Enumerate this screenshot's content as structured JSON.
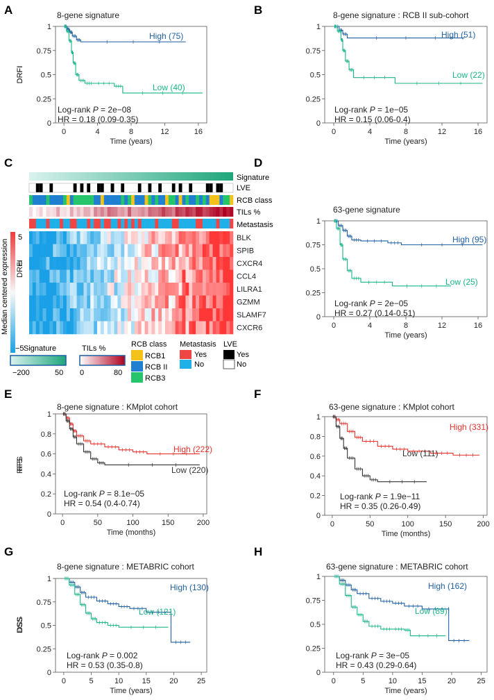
{
  "colors": {
    "teal": "#19b589",
    "blue": "#1f5f9f",
    "red": "#e5322d",
    "black": "#333333",
    "rcb1": "#f5c21b",
    "rcb2": "#1f7fd0",
    "rcb3": "#26c46b",
    "met_yes": "#f04545",
    "met_no": "#1fb0e8"
  },
  "panels": {
    "A": {
      "label": "A"
    },
    "B": {
      "label": "B"
    },
    "C": {
      "label": "C"
    },
    "D": {
      "label": "D"
    },
    "E": {
      "label": "E"
    },
    "F": {
      "label": "F"
    },
    "G": {
      "label": "G"
    },
    "H": {
      "label": "H"
    }
  },
  "heatmap": {
    "annotation_rows": [
      "Signature",
      "LVE",
      "RCB class",
      "TILs %",
      "Metastasis"
    ],
    "genes": [
      "BLK",
      "SPIB",
      "CXCR4",
      "CCL4",
      "LILRA1",
      "GZMM",
      "SLAMF7",
      "CXCR6"
    ],
    "scale_title": "Median centered expression",
    "scale_ticks": [
      "5",
      "0",
      "−5"
    ],
    "legends": {
      "signature": {
        "title": "Signature",
        "min": "−200",
        "max": "50"
      },
      "tils": {
        "title": "TILs %",
        "min": "0",
        "max": "80"
      },
      "rcb": {
        "title": "RCB class",
        "items": [
          "RCB1",
          "RCB II",
          "RCB3"
        ]
      },
      "metastasis": {
        "title": "Metastasis",
        "items": [
          "Yes",
          "No"
        ]
      },
      "lve": {
        "title": "LVE",
        "items": [
          "Yes",
          "No"
        ]
      }
    }
  },
  "chart_data": [
    {
      "panel": "A",
      "type": "line",
      "title": "8-gene signature",
      "xlabel": "Time (years)",
      "ylabel": "DRFI",
      "xlim": [
        -1,
        17
      ],
      "ylim": [
        0,
        1
      ],
      "xticks": [
        "0",
        "4",
        "8",
        "12",
        "16"
      ],
      "yticks": [
        "0",
        "0.25",
        "0.5",
        "0.75",
        "1"
      ],
      "series": [
        {
          "name": "High (75)",
          "color": "#1f5f9f",
          "x": [
            0,
            0.4,
            0.7,
            1.0,
            1.5,
            2.0,
            14.5
          ],
          "y": [
            1,
            0.97,
            0.94,
            0.9,
            0.86,
            0.84,
            0.84
          ]
        },
        {
          "name": "Low (40)",
          "color": "#19b589",
          "x": [
            0,
            0.3,
            0.6,
            0.9,
            1.1,
            1.4,
            1.8,
            2.5,
            3.5,
            6.0,
            7.0,
            16.5
          ],
          "y": [
            1,
            0.95,
            0.85,
            0.73,
            0.62,
            0.5,
            0.44,
            0.41,
            0.41,
            0.38,
            0.31,
            0.31
          ]
        }
      ],
      "stats": {
        "logrank_prefix": "Log-rank ",
        "P": "P",
        "logrank_value": " = 2e−08",
        "hr": "HR = 0.18 (0.09-0.35)"
      }
    },
    {
      "panel": "B",
      "type": "line",
      "title": "8-gene signature : RCB II sub-cohort",
      "xlabel": "Time (years)",
      "ylabel": "DRFI",
      "xlim": [
        -1,
        17
      ],
      "ylim": [
        0,
        1
      ],
      "xticks": [
        "0",
        "4",
        "8",
        "12",
        "16"
      ],
      "yticks": [
        "0",
        "0.25",
        "0.5",
        "0.75",
        "1"
      ],
      "series": [
        {
          "name": "High (51)",
          "color": "#1f5f9f",
          "x": [
            0,
            0.6,
            1.0,
            1.5,
            14.5
          ],
          "y": [
            1,
            0.96,
            0.92,
            0.88,
            0.88
          ]
        },
        {
          "name": "Low (22)",
          "color": "#19b589",
          "x": [
            0,
            0.4,
            0.8,
            1.0,
            1.3,
            1.7,
            2.2,
            6.8,
            16.5
          ],
          "y": [
            1,
            0.95,
            0.86,
            0.75,
            0.64,
            0.55,
            0.47,
            0.41,
            0.41
          ]
        }
      ],
      "stats": {
        "logrank_prefix": "Log-rank ",
        "P": "P",
        "logrank_value": " = 1e−05",
        "hr": "HR = 0.15 (0.06-0.4)"
      }
    },
    {
      "panel": "D",
      "type": "line",
      "title": "63-gene signature",
      "xlabel": "Time (years)",
      "ylabel": "DRFI",
      "xlim": [
        -1,
        17
      ],
      "ylim": [
        0,
        1
      ],
      "xticks": [
        "0",
        "4",
        "8",
        "12",
        "16"
      ],
      "yticks": [
        "0",
        "0.25",
        "0.5",
        "0.75",
        "1"
      ],
      "series": [
        {
          "name": "High (95)",
          "color": "#1f5f9f",
          "x": [
            0,
            0.5,
            1.0,
            1.5,
            2.0,
            3.0,
            6.0,
            7.5,
            16.5
          ],
          "y": [
            1,
            0.95,
            0.9,
            0.84,
            0.8,
            0.79,
            0.77,
            0.75,
            0.75
          ]
        },
        {
          "name": "Low (25)",
          "color": "#19b589",
          "x": [
            0,
            0.3,
            0.7,
            1.0,
            1.5,
            2.0,
            3.0,
            6.5,
            13.0
          ],
          "y": [
            1,
            0.92,
            0.75,
            0.6,
            0.48,
            0.4,
            0.36,
            0.32,
            0.32
          ]
        }
      ],
      "stats": {
        "logrank_prefix": "Log-rank ",
        "P": "P",
        "logrank_value": " = 2e−05",
        "hr": "HR = 0.27 (0.14-0.51)"
      }
    },
    {
      "panel": "E",
      "type": "line",
      "title": "8-gene signature : KMplot cohort",
      "xlabel": "Time (months)",
      "ylabel": "RFS",
      "xlim": [
        -10,
        205
      ],
      "ylim": [
        0,
        1
      ],
      "xticks": [
        "0",
        "50",
        "100",
        "150",
        "200"
      ],
      "yticks": [
        "0",
        "0.2",
        "0.4",
        "0.6",
        "0.8",
        "1"
      ],
      "series": [
        {
          "name": "High (222)",
          "color": "#e5322d",
          "x": [
            0,
            5,
            10,
            15,
            20,
            30,
            40,
            60,
            80,
            100,
            120,
            195
          ],
          "y": [
            1,
            0.96,
            0.9,
            0.83,
            0.78,
            0.73,
            0.7,
            0.67,
            0.64,
            0.62,
            0.6,
            0.6
          ]
        },
        {
          "name": "Low (220)",
          "color": "#333333",
          "x": [
            0,
            5,
            10,
            15,
            20,
            30,
            40,
            50,
            60,
            195
          ],
          "y": [
            1,
            0.93,
            0.85,
            0.77,
            0.7,
            0.62,
            0.55,
            0.51,
            0.49,
            0.49
          ]
        }
      ],
      "stats": {
        "logrank_prefix": "Log-rank ",
        "P": "P",
        "logrank_value": " = 8.1e−05",
        "hr": "HR = 0.54 (0.4-0.74)"
      }
    },
    {
      "panel": "F",
      "type": "line",
      "title": "63-gene signature : KMplot cohort",
      "xlabel": "Time (months)",
      "ylabel": "RFS",
      "xlim": [
        -10,
        205
      ],
      "ylim": [
        0,
        1
      ],
      "xticks": [
        "0",
        "50",
        "100",
        "150",
        "200"
      ],
      "yticks": [
        "0",
        "0.2",
        "0.4",
        "0.6",
        "0.8",
        "1"
      ],
      "series": [
        {
          "name": "High (331)",
          "color": "#e5322d",
          "x": [
            0,
            5,
            10,
            20,
            30,
            40,
            60,
            80,
            100,
            130,
            160,
            195
          ],
          "y": [
            1,
            0.97,
            0.93,
            0.85,
            0.79,
            0.75,
            0.7,
            0.67,
            0.65,
            0.63,
            0.61,
            0.61
          ]
        },
        {
          "name": "Low (111)",
          "color": "#333333",
          "x": [
            0,
            5,
            10,
            15,
            20,
            30,
            40,
            50,
            60,
            125
          ],
          "y": [
            1,
            0.9,
            0.78,
            0.68,
            0.58,
            0.47,
            0.4,
            0.36,
            0.34,
            0.34
          ]
        }
      ],
      "stats": {
        "logrank_prefix": "Log-rank ",
        "P": "P",
        "logrank_value": " = 1.9e−11",
        "hr": "HR = 0.35 (0.26-0.49)"
      }
    },
    {
      "panel": "G",
      "type": "line",
      "title": "8-gene signature : METABRIC cohort",
      "xlabel": "Time (years)",
      "ylabel": "DSS",
      "xlim": [
        -1.5,
        26
      ],
      "ylim": [
        0,
        1
      ],
      "xticks": [
        "0",
        "5",
        "10",
        "15",
        "20",
        "25"
      ],
      "yticks": [
        "0",
        "0.25",
        "0.5",
        "0.75",
        "1"
      ],
      "series": [
        {
          "name": "High (130)",
          "color": "#1f5f9f",
          "x": [
            0,
            1,
            2,
            3,
            4,
            6,
            8,
            10,
            12,
            15,
            19.5,
            19.5,
            23
          ],
          "y": [
            1,
            0.96,
            0.91,
            0.85,
            0.8,
            0.76,
            0.73,
            0.7,
            0.68,
            0.64,
            0.64,
            0.32,
            0.32
          ]
        },
        {
          "name": "Low (121)",
          "color": "#19b589",
          "x": [
            0,
            1,
            2,
            3,
            4,
            5,
            6,
            8,
            10,
            19
          ],
          "y": [
            1,
            0.93,
            0.83,
            0.72,
            0.63,
            0.57,
            0.53,
            0.5,
            0.48,
            0.48
          ]
        }
      ],
      "stats": {
        "logrank_prefix": "Log-rank ",
        "P": "P",
        "logrank_value": " = 0.002",
        "hr": "HR = 0.53 (0.35-0.8)"
      }
    },
    {
      "panel": "H",
      "type": "line",
      "title": "63-gene signature : METABRIC cohort",
      "xlabel": "Time (years)",
      "ylabel": "DSS",
      "xlim": [
        -1.5,
        26
      ],
      "ylim": [
        0,
        1
      ],
      "xticks": [
        "0",
        "5",
        "10",
        "15",
        "20",
        "25"
      ],
      "yticks": [
        "0",
        "0.25",
        "0.5",
        "0.75",
        "1"
      ],
      "series": [
        {
          "name": "High (162)",
          "color": "#1f5f9f",
          "x": [
            0,
            1,
            2,
            3,
            4,
            6,
            8,
            10,
            12,
            15,
            19.5,
            19.5,
            23
          ],
          "y": [
            1,
            0.96,
            0.91,
            0.86,
            0.82,
            0.77,
            0.74,
            0.72,
            0.69,
            0.66,
            0.66,
            0.33,
            0.33
          ]
        },
        {
          "name": "Low (89)",
          "color": "#19b589",
          "x": [
            0,
            1,
            2,
            3,
            4,
            5,
            6,
            8,
            10,
            12,
            13,
            19
          ],
          "y": [
            1,
            0.92,
            0.8,
            0.68,
            0.6,
            0.53,
            0.48,
            0.45,
            0.45,
            0.44,
            0.38,
            0.38
          ]
        }
      ],
      "stats": {
        "logrank_prefix": "Log-rank ",
        "P": "P",
        "logrank_value": " = 3e−05",
        "hr": "HR = 0.43 (0.29-0.64)"
      }
    }
  ]
}
